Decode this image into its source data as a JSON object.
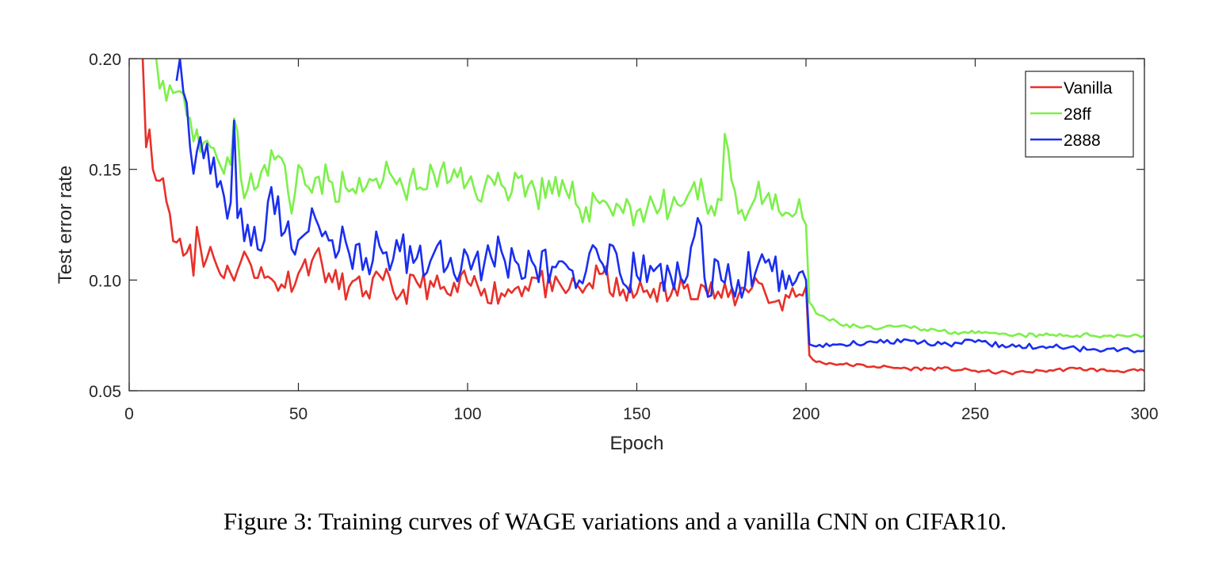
{
  "caption": "Figure 3: Training curves of WAGE variations and a vanilla CNN on CIFAR10.",
  "colors": {
    "Vanilla": "#e8302a",
    "28ff": "#7cf04a",
    "2888": "#1a2ef0"
  },
  "chart_data": {
    "type": "line",
    "xlabel": "Epoch",
    "ylabel": "Test error rate",
    "xlim": [
      0,
      300
    ],
    "ylim": [
      0.05,
      0.2
    ],
    "xticks": [
      0,
      50,
      100,
      150,
      200,
      250,
      300
    ],
    "xtick_labels": [
      "0",
      "50",
      "100",
      "150",
      "200",
      "250",
      "300"
    ],
    "yticks": [
      0.05,
      0.1,
      0.15,
      0.2
    ],
    "ytick_labels": [
      "0.05",
      "0.10",
      "0.15",
      "0.20"
    ],
    "grid": false,
    "legend_position": "top-right",
    "series": [
      {
        "name": "Vanilla",
        "x": [
          4,
          5,
          6,
          8,
          10,
          12,
          14,
          16,
          18,
          19,
          20,
          22,
          24,
          26,
          30,
          35,
          40,
          45,
          50,
          55,
          60,
          65,
          70,
          75,
          80,
          85,
          90,
          95,
          100,
          105,
          110,
          115,
          120,
          125,
          130,
          135,
          140,
          145,
          150,
          155,
          160,
          165,
          170,
          175,
          180,
          185,
          190,
          195,
          199,
          200,
          201,
          203,
          210,
          220,
          230,
          240,
          250,
          260,
          270,
          280,
          290,
          300
        ],
        "y": [
          0.2,
          0.16,
          0.168,
          0.145,
          0.146,
          0.13,
          0.117,
          0.111,
          0.116,
          0.102,
          0.124,
          0.106,
          0.115,
          0.106,
          0.103,
          0.11,
          0.101,
          0.098,
          0.103,
          0.112,
          0.099,
          0.097,
          0.095,
          0.1,
          0.093,
          0.099,
          0.097,
          0.093,
          0.099,
          0.096,
          0.094,
          0.097,
          0.101,
          0.095,
          0.096,
          0.097,
          0.103,
          0.093,
          0.094,
          0.096,
          0.093,
          0.098,
          0.097,
          0.092,
          0.093,
          0.101,
          0.09,
          0.092,
          0.093,
          0.097,
          0.066,
          0.063,
          0.062,
          0.061,
          0.06,
          0.06,
          0.059,
          0.058,
          0.059,
          0.06,
          0.059,
          0.059
        ]
      },
      {
        "name": "28ff",
        "x": [
          8,
          10,
          12,
          14,
          16,
          18,
          20,
          22,
          24,
          26,
          28,
          30,
          31,
          33,
          35,
          40,
          45,
          48,
          50,
          55,
          60,
          65,
          70,
          75,
          80,
          85,
          90,
          95,
          100,
          105,
          110,
          115,
          120,
          125,
          130,
          135,
          140,
          145,
          150,
          155,
          160,
          165,
          170,
          175,
          176,
          180,
          185,
          190,
          195,
          199,
          200,
          201,
          203,
          210,
          220,
          230,
          240,
          250,
          260,
          270,
          280,
          290,
          300
        ],
        "y": [
          0.2,
          0.19,
          0.188,
          0.185,
          0.184,
          0.173,
          0.168,
          0.162,
          0.16,
          0.155,
          0.148,
          0.152,
          0.173,
          0.146,
          0.141,
          0.152,
          0.155,
          0.13,
          0.152,
          0.146,
          0.144,
          0.14,
          0.142,
          0.145,
          0.146,
          0.141,
          0.148,
          0.145,
          0.144,
          0.142,
          0.143,
          0.146,
          0.14,
          0.139,
          0.137,
          0.133,
          0.136,
          0.133,
          0.131,
          0.134,
          0.132,
          0.138,
          0.137,
          0.136,
          0.166,
          0.13,
          0.137,
          0.132,
          0.13,
          0.128,
          0.125,
          0.09,
          0.085,
          0.08,
          0.078,
          0.079,
          0.077,
          0.076,
          0.075,
          0.075,
          0.075,
          0.075,
          0.075
        ]
      },
      {
        "name": "2888",
        "x": [
          14,
          15,
          16,
          17,
          18,
          20,
          22,
          24,
          26,
          28,
          30,
          31,
          32,
          35,
          40,
          42,
          45,
          50,
          55,
          60,
          65,
          70,
          75,
          80,
          85,
          90,
          95,
          100,
          105,
          110,
          115,
          120,
          125,
          130,
          135,
          140,
          145,
          150,
          155,
          160,
          165,
          168,
          170,
          175,
          180,
          185,
          190,
          195,
          199,
          200,
          201,
          203,
          210,
          220,
          230,
          240,
          250,
          260,
          270,
          280,
          290,
          300
        ],
        "y": [
          0.19,
          0.2,
          0.185,
          0.18,
          0.16,
          0.158,
          0.155,
          0.148,
          0.142,
          0.138,
          0.135,
          0.172,
          0.128,
          0.125,
          0.118,
          0.142,
          0.12,
          0.118,
          0.128,
          0.118,
          0.112,
          0.11,
          0.112,
          0.113,
          0.11,
          0.112,
          0.11,
          0.111,
          0.108,
          0.113,
          0.107,
          0.106,
          0.106,
          0.105,
          0.104,
          0.107,
          0.103,
          0.102,
          0.104,
          0.102,
          0.102,
          0.128,
          0.101,
          0.1,
          0.1,
          0.103,
          0.104,
          0.102,
          0.104,
          0.1,
          0.071,
          0.07,
          0.071,
          0.072,
          0.073,
          0.071,
          0.072,
          0.07,
          0.07,
          0.069,
          0.069,
          0.068
        ]
      }
    ]
  }
}
